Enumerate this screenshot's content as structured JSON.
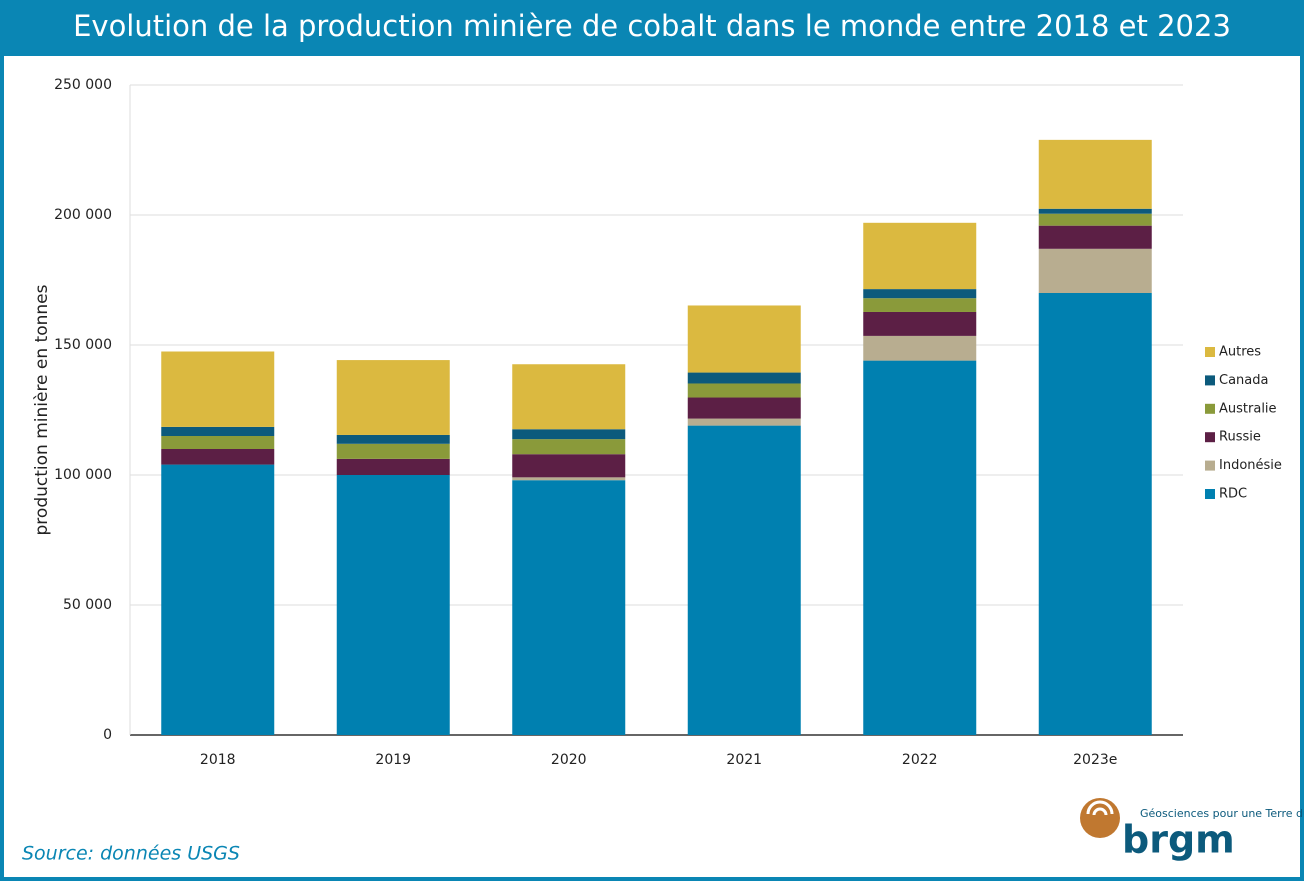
{
  "chart_data": {
    "type": "stacked-bar",
    "title": "Evolution de la production minière de cobalt dans le monde entre 2018 et 2023",
    "y_label": "production minière en tonnes",
    "categories": [
      "2018",
      "2019",
      "2020",
      "2021",
      "2022",
      "2023e"
    ],
    "series": [
      {
        "name": "RDC",
        "color": "#0080b0",
        "values": [
          104000,
          100000,
          98000,
          119000,
          144000,
          170000
        ]
      },
      {
        "name": "Indonésie",
        "color": "#b8ad90",
        "values": [
          0,
          0,
          1100,
          2700,
          9500,
          17000
        ]
      },
      {
        "name": "Russie",
        "color": "#5c1f45",
        "values": [
          6000,
          6200,
          8900,
          8100,
          9200,
          8900
        ]
      },
      {
        "name": "Australie",
        "color": "#8a9a3a",
        "values": [
          5000,
          5800,
          5800,
          5400,
          5300,
          4600
        ]
      },
      {
        "name": "Canada",
        "color": "#0c5a7c",
        "values": [
          3500,
          3400,
          3800,
          4200,
          3500,
          1900
        ]
      },
      {
        "name": "Autres",
        "color": "#dbb940",
        "values": [
          29000,
          28800,
          25000,
          25800,
          25500,
          26500
        ]
      }
    ],
    "ylim": [
      0,
      250000
    ],
    "yticks": [
      0,
      {
        "value": 50000,
        "label": "50 000"
      },
      {
        "value": 100000,
        "label": "100 000"
      },
      {
        "value": 150000,
        "label": "150 000"
      },
      {
        "value": 200000,
        "label": "200 000"
      },
      {
        "value": 250000,
        "label": "250 000"
      }
    ],
    "grid": true,
    "legend": "right"
  },
  "footer": {
    "source": "Source: données USGS",
    "logo_tagline": "Géosciences pour une Terre durable",
    "logo_name": "brgm"
  }
}
